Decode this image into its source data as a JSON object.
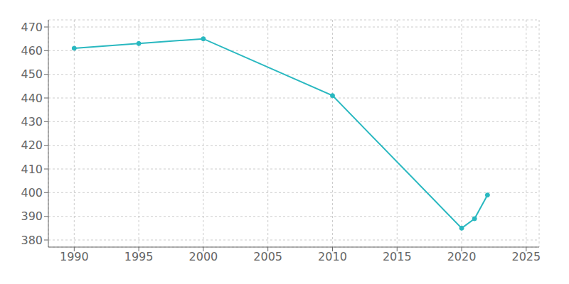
{
  "chart_data": {
    "type": "line",
    "x": [
      1990,
      1995,
      2000,
      2010,
      2020,
      2021,
      2022
    ],
    "values": [
      461,
      463,
      465,
      441,
      385,
      389,
      399
    ],
    "color": "#29B8C0",
    "marker": "circle",
    "xlim": [
      1988,
      2026
    ],
    "ylim": [
      377,
      473
    ],
    "xticks": [
      1990,
      1995,
      2000,
      2005,
      2010,
      2015,
      2020,
      2025
    ],
    "yticks": [
      380,
      390,
      400,
      410,
      420,
      430,
      440,
      450,
      460,
      470
    ],
    "grid": true
  }
}
